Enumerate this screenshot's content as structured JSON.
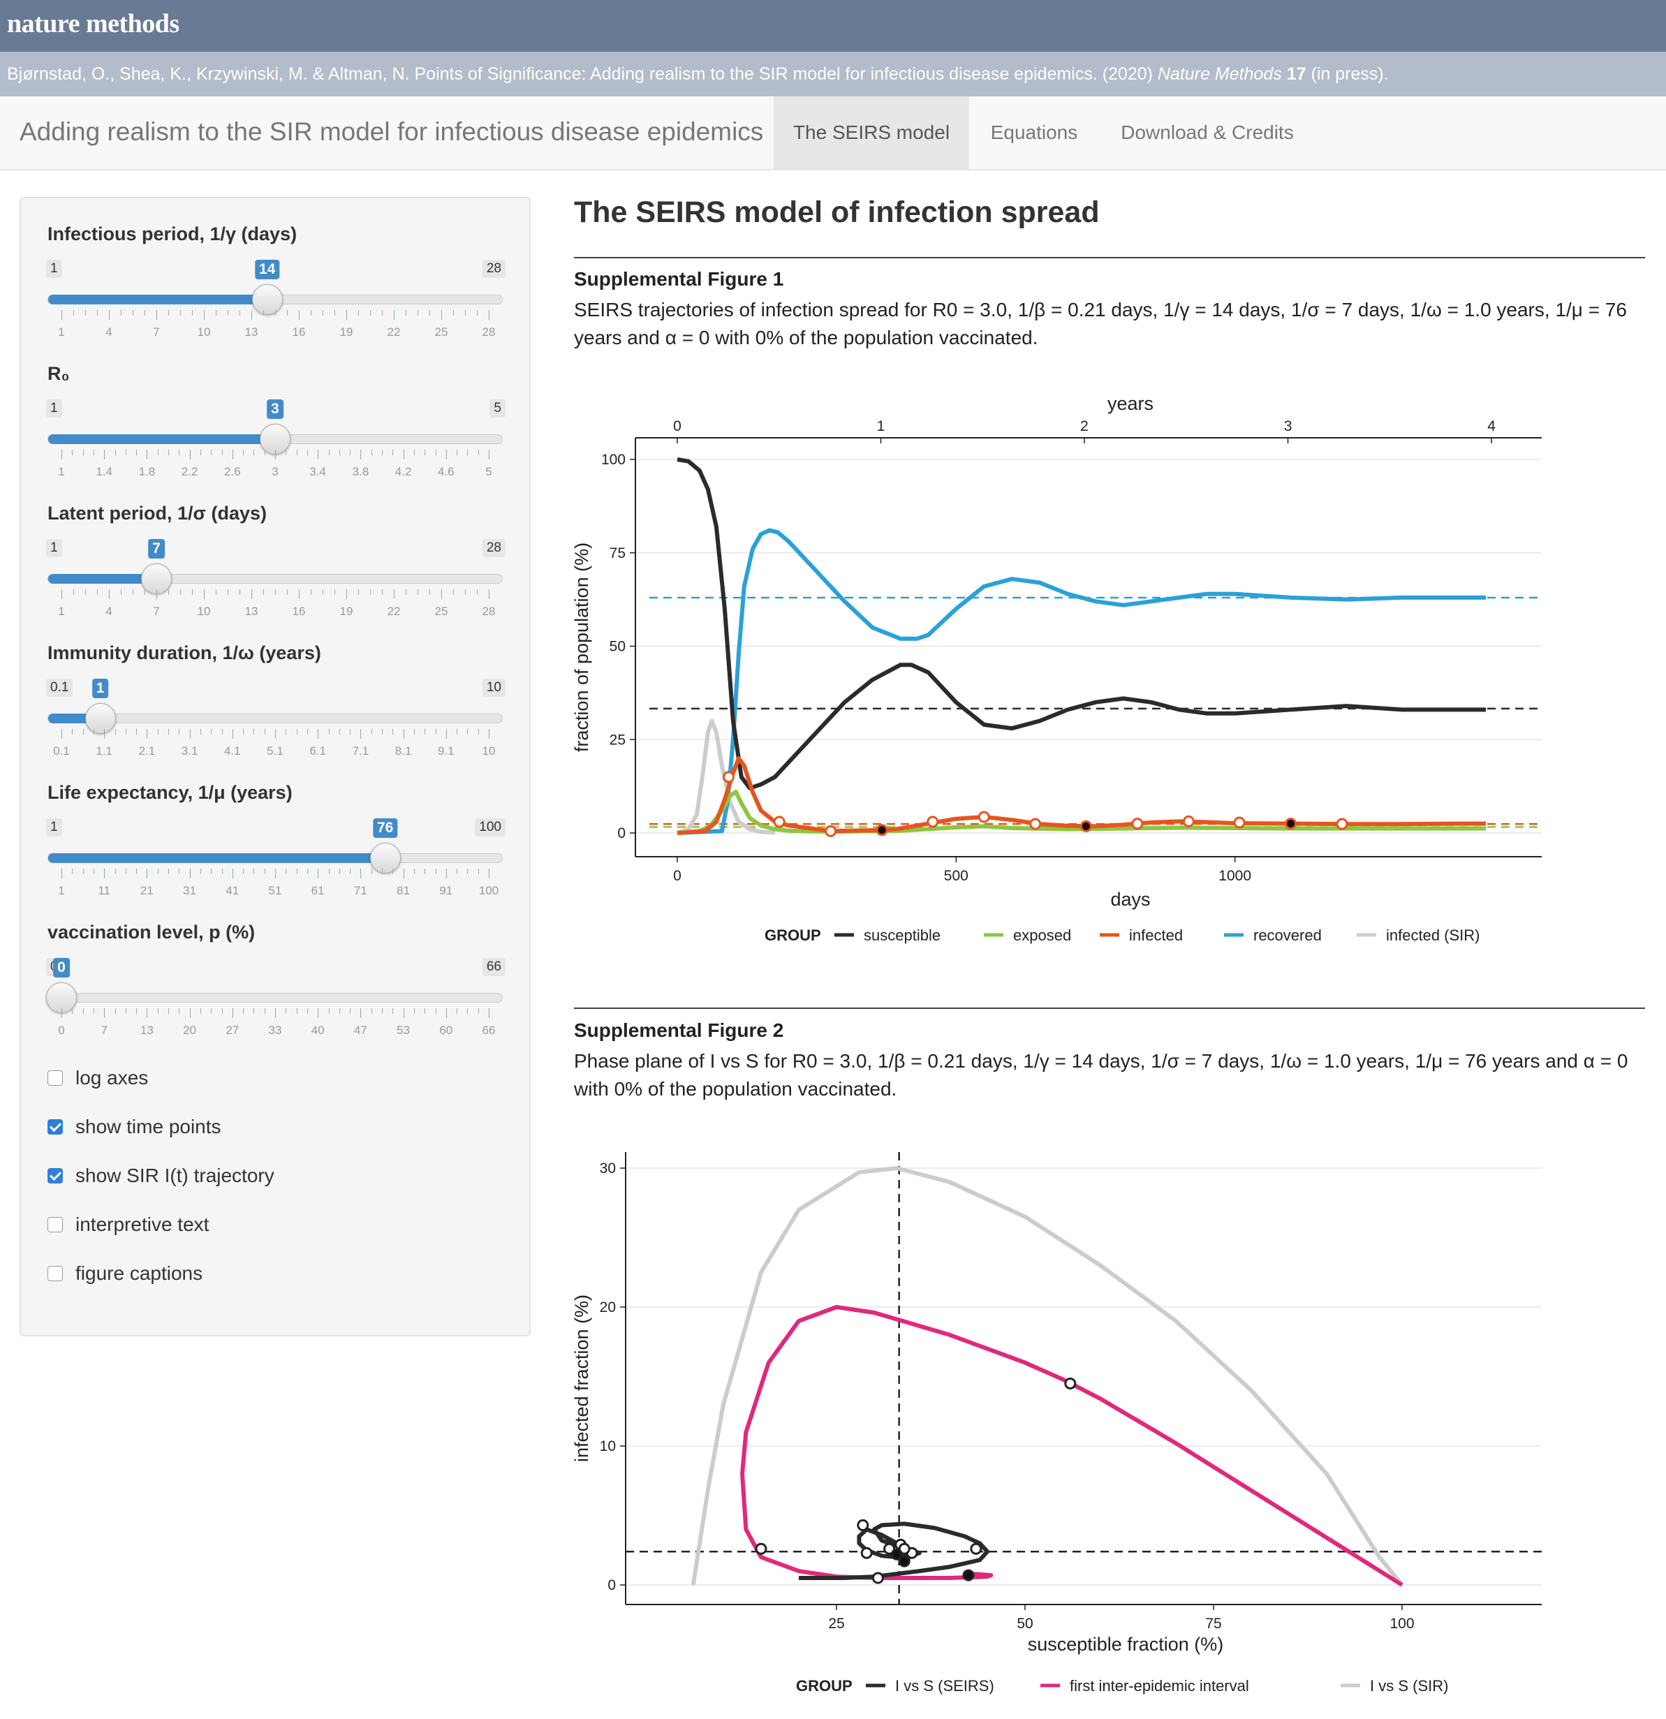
{
  "brand": "nature methods",
  "citation": {
    "authors": "Bjørnstad, O., Shea, K., Krzywinski, M. & Altman, N. Points of Significance: Adding realism to the SIR model for infectious disease epidemics. (2020) ",
    "journal": "Nature Methods",
    "volume": "17",
    "status": " (in press)."
  },
  "nav": {
    "title": "Adding realism to the SIR model for infectious disease epidemics",
    "tabs": [
      "The SEIRS model",
      "Equations",
      "Download & Credits"
    ],
    "active_tab": 0
  },
  "sliders": [
    {
      "label": "Infectious period, 1/γ (days)",
      "min": "1",
      "max": "28",
      "value": "14",
      "frac": 0.4815,
      "ticks": [
        "1",
        "4",
        "7",
        "10",
        "13",
        "16",
        "19",
        "22",
        "25",
        "28"
      ]
    },
    {
      "label": "R₀",
      "min": "1",
      "max": "5",
      "value": "3",
      "frac": 0.5,
      "ticks": [
        "1",
        "1.4",
        "1.8",
        "2.2",
        "2.6",
        "3",
        "3.4",
        "3.8",
        "4.2",
        "4.6",
        "5"
      ]
    },
    {
      "label": "Latent period, 1/σ (days)",
      "min": "1",
      "max": "28",
      "value": "7",
      "frac": 0.2222,
      "ticks": [
        "1",
        "4",
        "7",
        "10",
        "13",
        "16",
        "19",
        "22",
        "25",
        "28"
      ]
    },
    {
      "label": "Immunity duration, 1/ω (years)",
      "min": "0.1",
      "max": "10",
      "value": "1",
      "frac": 0.0909,
      "ticks": [
        "0.1",
        "1.1",
        "2.1",
        "3.1",
        "4.1",
        "5.1",
        "6.1",
        "7.1",
        "8.1",
        "9.1",
        "10"
      ]
    },
    {
      "label": "Life expectancy, 1/μ (years)",
      "min": "1",
      "max": "100",
      "value": "76",
      "frac": 0.7576,
      "ticks": [
        "1",
        "11",
        "21",
        "31",
        "41",
        "51",
        "61",
        "71",
        "81",
        "91",
        "100"
      ]
    },
    {
      "label": "vaccination level, p (%)",
      "min": "0",
      "max": "66",
      "value": "0",
      "frac": 0.0,
      "ticks": [
        "0",
        "7",
        "13",
        "20",
        "27",
        "33",
        "40",
        "47",
        "53",
        "60",
        "66"
      ]
    }
  ],
  "checkboxes": [
    {
      "label": "log axes",
      "checked": false
    },
    {
      "label": "show time points",
      "checked": true
    },
    {
      "label": "show SIR I(t) trajectory",
      "checked": true
    },
    {
      "label": "interpretive text",
      "checked": false
    },
    {
      "label": "figure captions",
      "checked": false
    }
  ],
  "main": {
    "heading": "The SEIRS model of infection spread",
    "fig1": {
      "head": "Supplemental Figure 1",
      "caption": "SEIRS trajectories of infection spread for R0 = 3.0, 1/β = 0.21 days, 1/γ = 14 days, 1/σ = 7 days, 1/ω = 1.0 years, 1/μ = 76 years and α = 0 with 0% of the population vaccinated."
    },
    "fig2": {
      "head": "Supplemental Figure 2",
      "caption": "Phase plane of I vs S for R0 = 3.0, 1/β = 0.21 days, 1/γ = 14 days, 1/σ = 7 days, 1/ω = 1.0 years, 1/μ = 76 years and α = 0 with 0% of the population vaccinated."
    }
  },
  "chart_data": [
    {
      "type": "line",
      "xlabel": "days",
      "ylabel": "fraction of population (%)",
      "top_axis_label": "years",
      "xlim": [
        0,
        1500
      ],
      "ylim": [
        0,
        100
      ],
      "xticks": [
        0,
        500,
        1000
      ],
      "top_ticks": [
        0,
        1,
        2,
        3,
        4
      ],
      "yticks": [
        0,
        25,
        50,
        75,
        100
      ],
      "legend_title": "GROUP",
      "legend_position": "bottom",
      "series": [
        {
          "name": "susceptible",
          "color": "#2b2b2b",
          "x": [
            0,
            20,
            40,
            55,
            70,
            85,
            100,
            115,
            130,
            150,
            175,
            200,
            250,
            300,
            350,
            400,
            420,
            450,
            500,
            550,
            600,
            650,
            700,
            750,
            800,
            850,
            900,
            950,
            1000,
            1100,
            1200,
            1300,
            1400,
            1450
          ],
          "y": [
            100,
            99.5,
            97,
            92,
            82,
            60,
            30,
            15,
            12,
            13,
            15,
            19,
            27,
            35,
            41,
            45,
            45,
            43,
            35,
            29,
            28,
            30,
            33,
            35,
            36,
            35,
            33,
            32,
            32,
            33,
            34,
            33,
            33,
            33
          ]
        },
        {
          "name": "exposed",
          "color": "#8dc63f",
          "x": [
            0,
            40,
            60,
            80,
            95,
            105,
            115,
            130,
            150,
            175,
            200,
            250,
            300,
            400,
            500,
            550,
            600,
            700,
            800,
            900,
            1000,
            1100,
            1200,
            1300,
            1400,
            1450
          ],
          "y": [
            0,
            0.5,
            2,
            6,
            10,
            11,
            8,
            4,
            2,
            1,
            0.6,
            0.4,
            0.4,
            0.6,
            1.5,
            1.8,
            1.3,
            1,
            1.2,
            1.4,
            1.3,
            1.2,
            1.2,
            1.2,
            1.2,
            1.2
          ]
        },
        {
          "name": "infected",
          "color": "#e8541e",
          "x": [
            0,
            50,
            70,
            85,
            100,
            110,
            120,
            135,
            150,
            175,
            200,
            275,
            375,
            400,
            450,
            500,
            550,
            600,
            650,
            700,
            750,
            800,
            850,
            900,
            950,
            1000,
            1100,
            1200,
            1300,
            1400,
            1450
          ],
          "y": [
            0,
            0.5,
            3,
            9,
            16,
            20,
            18,
            11,
            6,
            3,
            2,
            0.5,
            0.8,
            1.2,
            2.5,
            3.8,
            4.3,
            3.5,
            2.4,
            1.9,
            1.8,
            2.2,
            2.8,
            3.1,
            2.9,
            2.6,
            2.5,
            2.4,
            2.4,
            2.5,
            2.5
          ]
        },
        {
          "name": "recovered",
          "color": "#2aa1d8",
          "x": [
            0,
            80,
            90,
            100,
            110,
            120,
            135,
            150,
            165,
            180,
            200,
            250,
            300,
            350,
            400,
            430,
            450,
            500,
            550,
            600,
            650,
            700,
            750,
            800,
            850,
            900,
            950,
            1000,
            1100,
            1200,
            1300,
            1400,
            1450
          ],
          "y": [
            0,
            0.5,
            8,
            25,
            48,
            66,
            76,
            80,
            81,
            80.5,
            78,
            70,
            62,
            55,
            52,
            52,
            53,
            60,
            66,
            68,
            67,
            64,
            62,
            61,
            62,
            63,
            64,
            64,
            63,
            62.5,
            63,
            63,
            63
          ]
        },
        {
          "name": "infected (SIR)",
          "color": "#cccccc",
          "x": [
            0,
            20,
            35,
            45,
            55,
            62,
            70,
            80,
            95,
            110,
            130,
            150,
            175
          ],
          "y": [
            0,
            1,
            5,
            15,
            27,
            30,
            27,
            18,
            8,
            3,
            1,
            0.3,
            0.1
          ]
        }
      ],
      "reference_lines": [
        {
          "series": "recovered",
          "y": 63
        },
        {
          "series": "susceptible",
          "y": 33.3
        },
        {
          "series": "infected",
          "y": 2.4
        },
        {
          "series": "exposed",
          "y": 1.6
        }
      ],
      "time_points_infected": {
        "x": [
          92,
          183,
          275,
          367,
          458,
          550,
          642,
          733,
          825,
          917,
          1008,
          1100,
          1192
        ],
        "y": [
          15,
          3,
          0.5,
          0.8,
          3,
          4.3,
          2.4,
          1.8,
          2.5,
          3.1,
          2.8,
          2.5,
          2.4
        ],
        "yearly_filled": [
          367,
          733,
          1100
        ]
      }
    },
    {
      "type": "line",
      "xlabel": "susceptible fraction (%)",
      "ylabel": "infected fraction (%)",
      "xlim": [
        2,
        110
      ],
      "ylim": [
        -1.5,
        31.5
      ],
      "xticks": [
        25,
        50,
        75,
        100
      ],
      "yticks": [
        0,
        10,
        20,
        30
      ],
      "legend_title": "GROUP",
      "legend_position": "bottom",
      "reference_lines": [
        {
          "axis": "x",
          "value": 33.3
        },
        {
          "axis": "y",
          "value": 2.4
        }
      ],
      "series": [
        {
          "name": "I vs S (SEIRS)",
          "color": "#2b2b2b",
          "x": [
            20,
            22,
            26,
            30,
            33,
            36,
            40,
            44,
            45,
            44,
            42,
            38,
            34,
            31,
            30,
            31,
            33,
            35,
            36,
            35,
            33,
            31,
            29,
            28,
            28,
            29,
            31,
            33,
            34,
            35,
            34.5,
            33.5,
            33,
            33.3
          ],
          "y": [
            0.5,
            0.5,
            0.5,
            0.6,
            0.8,
            1,
            1.3,
            1.8,
            2.4,
            3,
            3.5,
            4.1,
            4.4,
            4.3,
            4,
            3.2,
            2.8,
            2.5,
            2.3,
            2.1,
            2,
            2.1,
            2.5,
            3,
            3.5,
            4,
            3.6,
            3,
            2.5,
            2.2,
            1.9,
            2,
            2.2,
            2.4
          ]
        },
        {
          "name": "first inter-epidemic interval",
          "color": "#e0287c",
          "x": [
            100,
            90,
            80,
            70,
            60,
            55,
            50,
            40,
            30,
            25,
            20,
            16,
            13,
            12.5,
            13,
            15,
            20,
            25,
            30,
            35,
            40,
            45,
            45.5,
            43
          ],
          "y": [
            0,
            3.4,
            6.8,
            10.2,
            13.4,
            14.8,
            16,
            18,
            19.6,
            20,
            19,
            16,
            11,
            8,
            4,
            2,
            1,
            0.6,
            0.5,
            0.5,
            0.5,
            0.6,
            0.7,
            0.8
          ]
        },
        {
          "name": "I vs S (SIR)",
          "color": "#cccccc",
          "x": [
            100,
            97,
            90,
            80,
            70,
            60,
            50,
            40,
            33,
            28,
            20,
            15,
            10,
            8,
            6
          ],
          "y": [
            0,
            2,
            8,
            14,
            19,
            23,
            26.5,
            29,
            30,
            29.7,
            27,
            22.5,
            13,
            7,
            0
          ]
        }
      ],
      "points": {
        "open": [
          [
            56,
            14.5
          ],
          [
            15,
            2.6
          ],
          [
            30.5,
            0.5
          ],
          [
            28.5,
            4.3
          ],
          [
            43.5,
            2.6
          ],
          [
            29,
            2.3
          ],
          [
            33.5,
            2.9
          ],
          [
            32,
            2.6
          ],
          [
            35,
            2.3
          ],
          [
            34,
            2.6
          ]
        ],
        "filled": [
          [
            42.5,
            0.7
          ],
          [
            33,
            2.2
          ],
          [
            34,
            1.7
          ]
        ]
      }
    }
  ]
}
